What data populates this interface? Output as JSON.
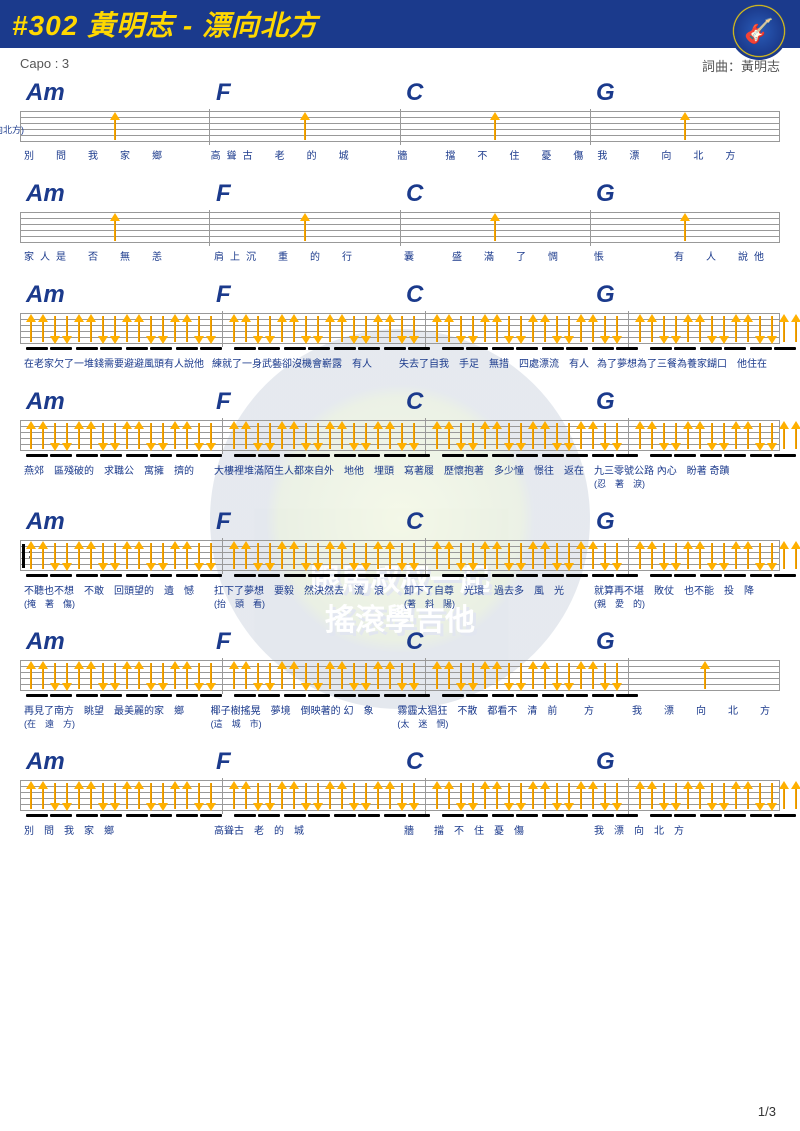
{
  "header": {
    "title": "#302 黃明志 - 漂向北方"
  },
  "subheader": {
    "capo": "Capo : 3",
    "credit": "詞曲：黃明志"
  },
  "watermark": {
    "line1": "跟馬叔叔一起",
    "line2": "搖滾學吉他"
  },
  "page": "1/3",
  "chord_progression": [
    "Am",
    "F",
    "C",
    "G"
  ],
  "colors": {
    "header_bg": "#1b3a8c",
    "title": "#ffd800",
    "chord": "#1b3a8c",
    "lyric": "#1b3a8c",
    "arrow": "#ffb000"
  },
  "rows": [
    {
      "pattern": "single",
      "prefix": "(漂向北方)",
      "lyrics": [
        "別　問　我　家　鄉",
        "高聳古　老　的　城",
        "牆　　擋　不　住　憂　傷",
        "我　漂　向　北　方"
      ]
    },
    {
      "pattern": "single",
      "lyrics": [
        "家人是　否　無　恙",
        "肩上沉　重　的　行",
        "囊　　盛　滿　了　惆",
        "悵　　　　有　人　說他"
      ]
    },
    {
      "pattern": "full",
      "lyrics": [
        "在老家欠了一堆錢需要避避風頭有人說他",
        "練就了一身武藝卻沒機會嶄露　有人",
        "失去了自我　手足　無措　四處漂流　有人",
        "為了夢想為了三餐為養家餬口　他住在"
      ]
    },
    {
      "pattern": "full",
      "lyrics": [
        "燕郊　區殘破的　求職公　寓擁　擠的",
        "大樓裡堆滿陌生人都來自外　地他　埋頭",
        "寫著履　歷懷抱著　多少憧　憬往　返在",
        "九三零號公路 內心　盼著 奇蹟"
      ],
      "sub": [
        "",
        "",
        "",
        "(忍　著　淚)"
      ]
    },
    {
      "pattern": "full",
      "repeat_start": true,
      "lyrics": [
        "不聽也不想　不敢　回頭望的　遺　憾",
        "扛下了夢想　要毅　然決然去　流　浪",
        "卸下了自尊　光環　過去多　風　光",
        "就算再不堪　敗仗　也不能　投　降"
      ],
      "sub": [
        "(掩　著　傷)",
        "(抬　頭　看)",
        "(著　斜　陽)",
        "(親　愛　的)"
      ]
    },
    {
      "pattern": "mixed",
      "lyrics": [
        "再見了南方　眺望　最美麗的家　鄉",
        "椰子樹搖晃　夢境　倒映著的 幻　象",
        "霧霾太猖狂　不散　都看不　清　前",
        "方　　我　漂　向　北　方"
      ],
      "sub": [
        "(在　遠　方)",
        "(這　城　市)",
        "(太　迷　惘)",
        ""
      ]
    },
    {
      "pattern": "full",
      "lyrics": [
        "別　問　我　家　鄉",
        "高聳古　老　的　城",
        "牆　　擋　不　住　憂　傷",
        "我　漂　向　北　方"
      ]
    }
  ]
}
